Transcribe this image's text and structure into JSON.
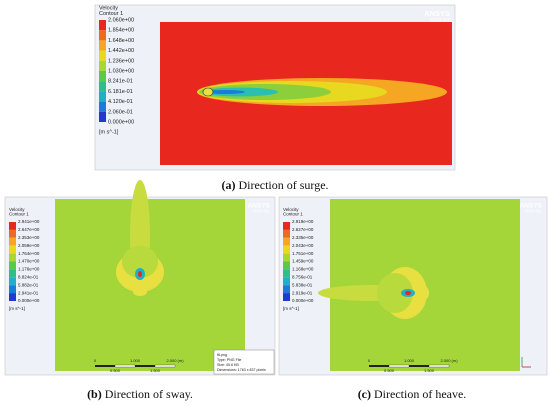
{
  "panels": [
    {
      "legend": {
        "title": "Velocity",
        "subtitle": "Contour 1",
        "levels": [
          "2.060e+00",
          "1.854e+00",
          "1.648e+00",
          "1.442e+00",
          "1.236e+00",
          "1.030e+00",
          "8.241e-01",
          "6.181e-01",
          "4.120e-01",
          "2.060e-01",
          "0.000e+00"
        ],
        "units": "[m s^-1]"
      },
      "logo": "ANSYS",
      "version": "2020 R2",
      "caption": {
        "label": "(a)",
        "text": "Direction of surge."
      }
    },
    {
      "legend": {
        "title": "Velocity",
        "subtitle": "Contour 1",
        "levels": [
          "2.941e+00",
          "2.647e+00",
          "2.353e+00",
          "2.059e+00",
          "1.764e+00",
          "1.470e+00",
          "1.176e+00",
          "8.824e-01",
          "5.882e-01",
          "2.941e-01",
          "0.000e+00"
        ],
        "units": "[m s^-1]"
      },
      "logo": "ANSYS",
      "version": "2020 R2",
      "tooltip": [
        "f6.png",
        "Type: PNG File",
        "Size: 45.6 KB",
        "Dimensions: 1763 x 837 pixels"
      ],
      "scale": {
        "labels": [
          "0",
          "1.000",
          "2.000 (m)"
        ],
        "sublabels": [
          "0.500",
          "1.500"
        ]
      },
      "caption": {
        "label": "(b)",
        "text": "Direction of sway."
      }
    },
    {
      "legend": {
        "title": "Velocity",
        "subtitle": "Contour 1",
        "levels": [
          "2.919e+00",
          "2.627e+00",
          "2.335e+00",
          "2.043e+00",
          "1.751e+00",
          "1.459e+00",
          "1.168e+00",
          "8.756e-01",
          "5.838e-01",
          "2.919e-01",
          "0.000e+00"
        ],
        "units": "[m s^-1]"
      },
      "logo": "ANSYS",
      "version": "2020 R2",
      "scale": {
        "labels": [
          "0",
          "1.000",
          "2.000 (m)"
        ],
        "sublabels": [
          "0.500",
          "1.500"
        ]
      },
      "caption": {
        "label": "(c)",
        "text": "Direction of heave."
      }
    }
  ]
}
